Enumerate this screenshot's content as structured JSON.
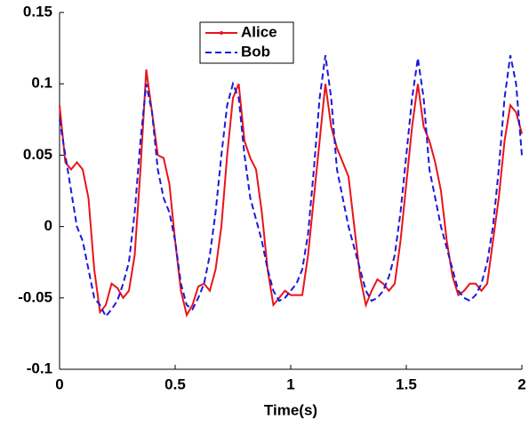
{
  "chart_data": {
    "type": "line",
    "xlabel": "Time(s)",
    "x": [
      0,
      0.025,
      0.05,
      0.075,
      0.1,
      0.125,
      0.15,
      0.175,
      0.2,
      0.225,
      0.25,
      0.275,
      0.3,
      0.325,
      0.35,
      0.375,
      0.4,
      0.425,
      0.45,
      0.475,
      0.5,
      0.525,
      0.55,
      0.575,
      0.6,
      0.625,
      0.65,
      0.675,
      0.7,
      0.725,
      0.75,
      0.775,
      0.8,
      0.825,
      0.85,
      0.875,
      0.9,
      0.925,
      0.95,
      0.975,
      1,
      1.025,
      1.05,
      1.075,
      1.1,
      1.125,
      1.15,
      1.175,
      1.2,
      1.225,
      1.25,
      1.275,
      1.3,
      1.325,
      1.35,
      1.375,
      1.4,
      1.425,
      1.45,
      1.475,
      1.5,
      1.525,
      1.55,
      1.575,
      1.6,
      1.625,
      1.65,
      1.675,
      1.7,
      1.725,
      1.75,
      1.775,
      1.8,
      1.825,
      1.85,
      1.875,
      1.9,
      1.925,
      1.95,
      1.975,
      2
    ],
    "series": [
      {
        "name": "Alice",
        "color": "#e8141b",
        "dash": false,
        "values": [
          0.085,
          0.045,
          0.04,
          0.045,
          0.04,
          0.02,
          -0.03,
          -0.06,
          -0.055,
          -0.04,
          -0.043,
          -0.05,
          -0.045,
          -0.02,
          0.04,
          0.11,
          0.08,
          0.05,
          0.048,
          0.03,
          -0.01,
          -0.045,
          -0.062,
          -0.055,
          -0.042,
          -0.04,
          -0.045,
          -0.03,
          0,
          0.05,
          0.09,
          0.1,
          0.06,
          0.048,
          0.04,
          0.01,
          -0.03,
          -0.055,
          -0.05,
          -0.045,
          -0.048,
          -0.048,
          -0.048,
          -0.02,
          0.02,
          0.06,
          0.1,
          0.07,
          0.055,
          0.045,
          0.035,
          0,
          -0.035,
          -0.055,
          -0.045,
          -0.037,
          -0.04,
          -0.045,
          -0.04,
          -0.01,
          0.03,
          0.07,
          0.1,
          0.07,
          0.06,
          0.045,
          0.025,
          -0.01,
          -0.035,
          -0.048,
          -0.045,
          -0.04,
          -0.04,
          -0.045,
          -0.04,
          -0.01,
          0.02,
          0.06,
          0.085,
          0.08,
          0.065
        ]
      },
      {
        "name": "Bob",
        "color": "#1a1adc",
        "dash": true,
        "values": [
          0.075,
          0.05,
          0.025,
          0,
          -0.01,
          -0.03,
          -0.05,
          -0.055,
          -0.063,
          -0.058,
          -0.052,
          -0.04,
          -0.025,
          0.01,
          0.06,
          0.1,
          0.08,
          0.04,
          0.02,
          0.01,
          -0.01,
          -0.04,
          -0.055,
          -0.058,
          -0.05,
          -0.04,
          -0.02,
          0.01,
          0.05,
          0.085,
          0.1,
          0.09,
          0.05,
          0.02,
          0.005,
          -0.01,
          -0.03,
          -0.045,
          -0.052,
          -0.05,
          -0.045,
          -0.04,
          -0.03,
          -0.005,
          0.04,
          0.09,
          0.12,
          0.09,
          0.04,
          0.02,
          0,
          -0.015,
          -0.03,
          -0.045,
          -0.052,
          -0.05,
          -0.045,
          -0.035,
          -0.02,
          0.01,
          0.05,
          0.09,
          0.118,
          0.09,
          0.04,
          0.02,
          0,
          -0.015,
          -0.03,
          -0.045,
          -0.05,
          -0.052,
          -0.048,
          -0.04,
          -0.025,
          0,
          0.04,
          0.09,
          0.12,
          0.1,
          0.05
        ]
      }
    ],
    "xlim": [
      0,
      2
    ],
    "xticks": [
      0,
      0.5,
      1,
      1.5,
      2
    ],
    "ylim": [
      -0.1,
      0.15
    ],
    "yticks": [
      -0.1,
      -0.05,
      0,
      0.05,
      0.1,
      0.15
    ],
    "legend": "upper center"
  }
}
